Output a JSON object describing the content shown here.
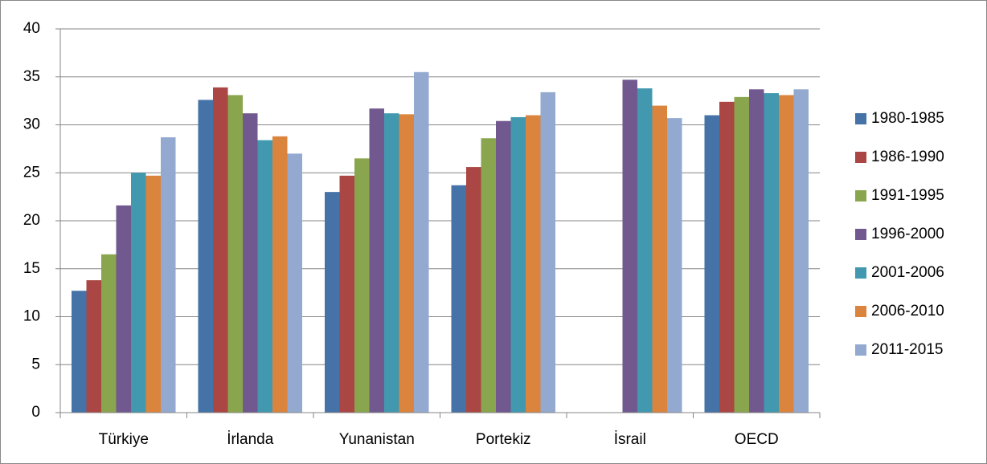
{
  "chart_data": {
    "type": "bar",
    "categories": [
      "Türkiye",
      "İrlanda",
      "Yunanistan",
      "Portekiz",
      "İsrail",
      "OECD"
    ],
    "series": [
      {
        "name": "1980-1985",
        "color": "#4572a7",
        "values": [
          12.7,
          32.6,
          23.0,
          23.7,
          null,
          31.0
        ]
      },
      {
        "name": "1986-1990",
        "color": "#aa4643",
        "values": [
          13.8,
          33.9,
          24.7,
          25.6,
          null,
          32.4
        ]
      },
      {
        "name": "1991-1995",
        "color": "#89a54e",
        "values": [
          16.5,
          33.1,
          26.5,
          28.6,
          null,
          32.9
        ]
      },
      {
        "name": "1996-2000",
        "color": "#71588f",
        "values": [
          21.6,
          31.2,
          31.7,
          30.4,
          34.7,
          33.7
        ]
      },
      {
        "name": "2001-2006",
        "color": "#4198af",
        "values": [
          25.0,
          28.4,
          31.2,
          30.8,
          33.8,
          33.3
        ]
      },
      {
        "name": "2006-2010",
        "color": "#db843d",
        "values": [
          24.7,
          28.8,
          31.1,
          31.0,
          32.0,
          33.1
        ]
      },
      {
        "name": "2011-2015",
        "color": "#93a9cf",
        "values": [
          28.7,
          27.0,
          35.5,
          33.4,
          30.7,
          33.7
        ]
      }
    ],
    "ylim": [
      0,
      40
    ],
    "yticks": [
      0,
      5,
      10,
      15,
      20,
      25,
      30,
      35,
      40
    ],
    "grid": true,
    "legend": "right"
  }
}
